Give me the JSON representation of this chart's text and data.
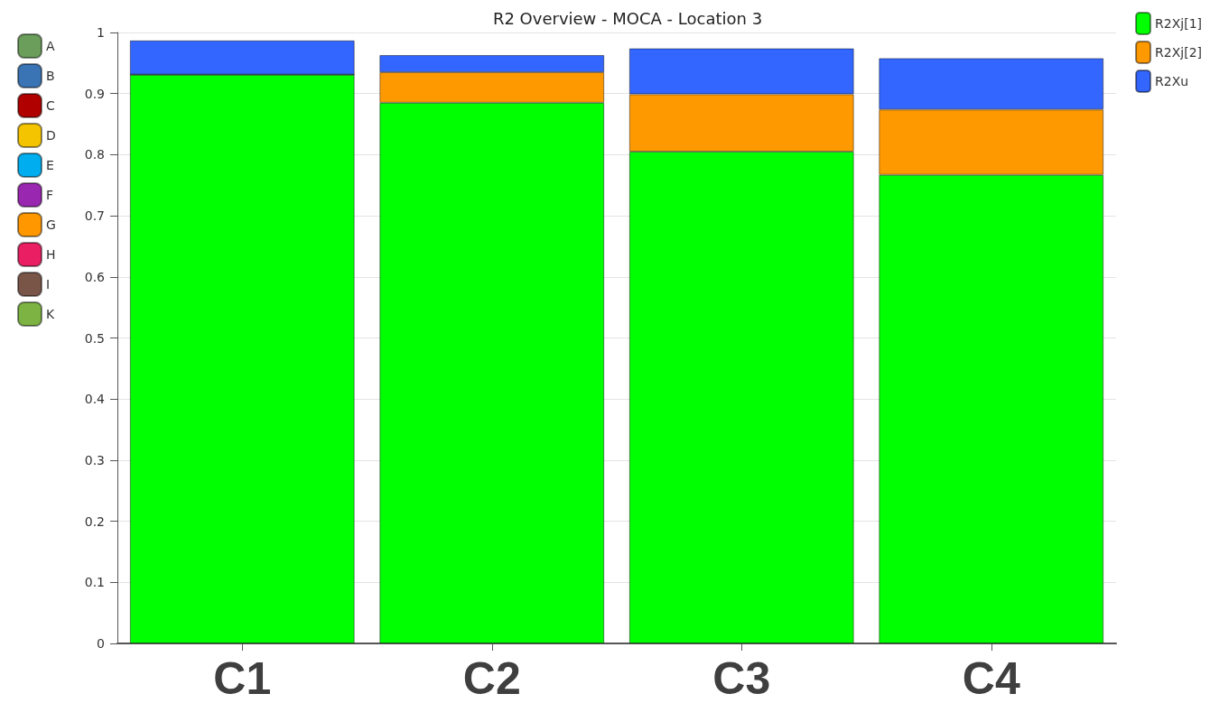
{
  "chart_data": {
    "type": "bar",
    "title": "R2 Overview - MOCA - Location 3",
    "categories": [
      "C1",
      "C2",
      "C3",
      "C4"
    ],
    "stacked": true,
    "series": [
      {
        "name": "R2Xj[1]",
        "color": "#00ff00",
        "values": [
          0.931,
          0.885,
          0.805,
          0.767
        ]
      },
      {
        "name": "R2Xj[2]",
        "color": "#ff9900",
        "values": [
          0,
          0.05,
          0.094,
          0.107
        ]
      },
      {
        "name": "R2Xu",
        "color": "#3366ff",
        "values": [
          0.056,
          0.028,
          0.075,
          0.084
        ]
      },
      {
        "name": "A",
        "color": "#6a9e5a",
        "values": [
          null,
          null,
          null,
          null
        ]
      },
      {
        "name": "B",
        "color": "#3a74b4",
        "values": [
          null,
          null,
          null,
          null
        ]
      },
      {
        "name": "C",
        "color": "#b00000",
        "values": [
          null,
          null,
          null,
          null
        ]
      },
      {
        "name": "D",
        "color": "#f5c400",
        "values": [
          null,
          null,
          null,
          null
        ]
      },
      {
        "name": "E",
        "color": "#00adef",
        "values": [
          null,
          null,
          null,
          null
        ]
      },
      {
        "name": "F",
        "color": "#9a27b0",
        "values": [
          null,
          null,
          null,
          null
        ]
      },
      {
        "name": "G",
        "color": "#ff9800",
        "values": [
          null,
          null,
          null,
          null
        ]
      },
      {
        "name": "H",
        "color": "#e91e63",
        "values": [
          null,
          null,
          null,
          null
        ]
      },
      {
        "name": "I",
        "color": "#795548",
        "values": [
          null,
          null,
          null,
          null
        ]
      },
      {
        "name": "K",
        "color": "#7cb342",
        "values": [
          null,
          null,
          null,
          null
        ]
      }
    ],
    "ylim": [
      0,
      1
    ],
    "yticks": [
      0,
      0.1,
      0.2,
      0.3,
      0.4,
      0.5,
      0.6,
      0.7,
      0.8,
      0.9,
      1
    ],
    "grid": "y",
    "legend": "top right"
  }
}
